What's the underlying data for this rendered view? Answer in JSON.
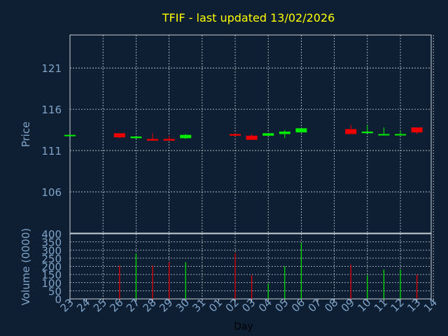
{
  "colors": {
    "background": "#0f1f33",
    "title": "#ffff00",
    "axis_text": "#7fa4c8",
    "day_label": "#000000",
    "grid": "#c8d0d8",
    "up": "#00ee00",
    "down": "#ee0000"
  },
  "chart_data": [
    {
      "type": "candlestick",
      "title": "TFIF - last updated 13/02/2026",
      "ylabel": "Price",
      "ylim": [
        101,
        125
      ],
      "yticks": [
        106,
        111,
        116,
        121
      ],
      "grid": true,
      "candles": [
        {
          "day": "23",
          "open": 112.9,
          "high": 112.9,
          "low": 112.9,
          "close": 112.9
        },
        {
          "day": "26",
          "open": 113.1,
          "high": 113.1,
          "low": 112.5,
          "close": 112.6
        },
        {
          "day": "27",
          "open": 112.5,
          "high": 112.7,
          "low": 112.4,
          "close": 112.7
        },
        {
          "day": "28",
          "open": 112.4,
          "high": 113.1,
          "low": 112.2,
          "close": 112.2
        },
        {
          "day": "29",
          "open": 112.4,
          "high": 112.8,
          "low": 112.2,
          "close": 112.2
        },
        {
          "day": "30",
          "open": 112.5,
          "high": 113.0,
          "low": 112.4,
          "close": 112.9
        },
        {
          "day": "02",
          "open": 113.0,
          "high": 113.1,
          "low": 112.7,
          "close": 112.8
        },
        {
          "day": "03",
          "open": 112.8,
          "high": 113.0,
          "low": 112.3,
          "close": 112.3
        },
        {
          "day": "04",
          "open": 112.8,
          "high": 113.1,
          "low": 112.8,
          "close": 113.1
        },
        {
          "day": "05",
          "open": 113.0,
          "high": 113.5,
          "low": 112.5,
          "close": 113.3
        },
        {
          "day": "06",
          "open": 113.2,
          "high": 113.7,
          "low": 113.2,
          "close": 113.7
        },
        {
          "day": "09",
          "open": 113.6,
          "high": 114.1,
          "low": 113.0,
          "close": 113.0
        },
        {
          "day": "10",
          "open": 113.1,
          "high": 114.1,
          "low": 113.1,
          "close": 113.3
        },
        {
          "day": "11",
          "open": 112.9,
          "high": 113.8,
          "low": 112.9,
          "close": 113.0
        },
        {
          "day": "12",
          "open": 112.9,
          "high": 113.4,
          "low": 112.9,
          "close": 113.0
        },
        {
          "day": "13",
          "open": 113.8,
          "high": 113.8,
          "low": 113.0,
          "close": 113.2
        }
      ]
    },
    {
      "type": "bar",
      "ylabel": "Volume (0000)",
      "xlabel": "Day",
      "ylim": [
        0,
        400
      ],
      "yticks": [
        0,
        50,
        100,
        150,
        200,
        250,
        300,
        350,
        400
      ],
      "categories": [
        "23",
        "24",
        "25",
        "26",
        "27",
        "28",
        "29",
        "30",
        "31",
        "01",
        "02",
        "03",
        "04",
        "05",
        "06",
        "07",
        "08",
        "09",
        "10",
        "11",
        "12",
        "13",
        "14"
      ],
      "bars": [
        {
          "day": "26",
          "value": 205,
          "direction": "down"
        },
        {
          "day": "27",
          "value": 280,
          "direction": "up"
        },
        {
          "day": "28",
          "value": 205,
          "direction": "down"
        },
        {
          "day": "29",
          "value": 225,
          "direction": "down"
        },
        {
          "day": "30",
          "value": 225,
          "direction": "up"
        },
        {
          "day": "02",
          "value": 280,
          "direction": "down"
        },
        {
          "day": "03",
          "value": 145,
          "direction": "down"
        },
        {
          "day": "04",
          "value": 95,
          "direction": "up"
        },
        {
          "day": "05",
          "value": 200,
          "direction": "up"
        },
        {
          "day": "06",
          "value": 345,
          "direction": "up"
        },
        {
          "day": "09",
          "value": 210,
          "direction": "down"
        },
        {
          "day": "10",
          "value": 145,
          "direction": "up"
        },
        {
          "day": "11",
          "value": 180,
          "direction": "up"
        },
        {
          "day": "12",
          "value": 180,
          "direction": "up"
        },
        {
          "day": "13",
          "value": 150,
          "direction": "down"
        }
      ]
    }
  ]
}
